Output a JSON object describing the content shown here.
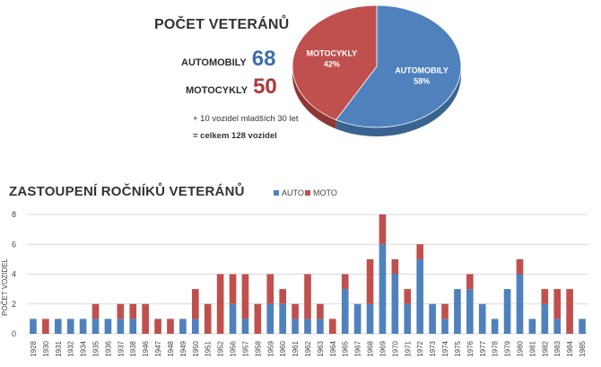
{
  "summary": {
    "title": "POČET VETERÁNŮ",
    "automobily_label": "AUTOMOBILY",
    "automobily_value": "68",
    "motocykly_label": "MOTOCYKLY",
    "motocykly_value": "50",
    "note_younger": "+ 10 vozidel mladších 30 let",
    "note_total": "= celkem 128 vozidel"
  },
  "colors": {
    "auto": "#4F81BD",
    "auto_dark": "#3A6390",
    "moto": "#C0504D",
    "moto_dark": "#8E3633"
  },
  "chart_data": [
    {
      "type": "pie",
      "slices": [
        {
          "label": "AUTOMOBILY",
          "percent_label": "58%",
          "value": 58
        },
        {
          "label": "MOTOCYKLY",
          "percent_label": "42%",
          "value": 42
        }
      ]
    },
    {
      "type": "bar",
      "title": "ZASTOUPENÍ ROČNÍKŮ VETERÁNŮ",
      "ylabel": "POČET VOZIDEL",
      "ylim": [
        0,
        8
      ],
      "yticks": [
        0,
        2,
        4,
        6,
        8
      ],
      "stacked": true,
      "grid": true,
      "legend": "top",
      "categories": [
        "1928",
        "1930",
        "1931",
        "1932",
        "1934",
        "1935",
        "1936",
        "1937",
        "1938",
        "1946",
        "1947",
        "1948",
        "1949",
        "1950",
        "1951",
        "1952",
        "1956",
        "1957",
        "1958",
        "1959",
        "1960",
        "1961",
        "1962",
        "1963",
        "1964",
        "1965",
        "1967",
        "1968",
        "1969",
        "1970",
        "1971",
        "1972",
        "1973",
        "1974",
        "1975",
        "1976",
        "1977",
        "1978",
        "1979",
        "1980",
        "1981",
        "1982",
        "1983",
        "1984",
        "1985"
      ],
      "series": [
        {
          "name": "AUTO",
          "values": [
            1,
            0,
            1,
            1,
            1,
            1,
            1,
            1,
            1,
            0,
            0,
            0,
            1,
            1,
            0,
            0,
            2,
            1,
            0,
            2,
            2,
            1,
            1,
            1,
            0,
            3,
            2,
            2,
            6,
            4,
            2,
            5,
            2,
            1,
            3,
            3,
            2,
            1,
            3,
            4,
            1,
            2,
            1,
            0,
            1
          ]
        },
        {
          "name": "MOTO",
          "values": [
            0,
            1,
            0,
            0,
            0,
            1,
            0,
            1,
            1,
            2,
            1,
            1,
            0,
            2,
            2,
            4,
            2,
            3,
            2,
            2,
            1,
            1,
            3,
            1,
            1,
            1,
            0,
            3,
            2,
            1,
            1,
            1,
            0,
            1,
            0,
            1,
            0,
            0,
            0,
            1,
            0,
            1,
            2,
            3,
            0
          ]
        }
      ]
    }
  ]
}
